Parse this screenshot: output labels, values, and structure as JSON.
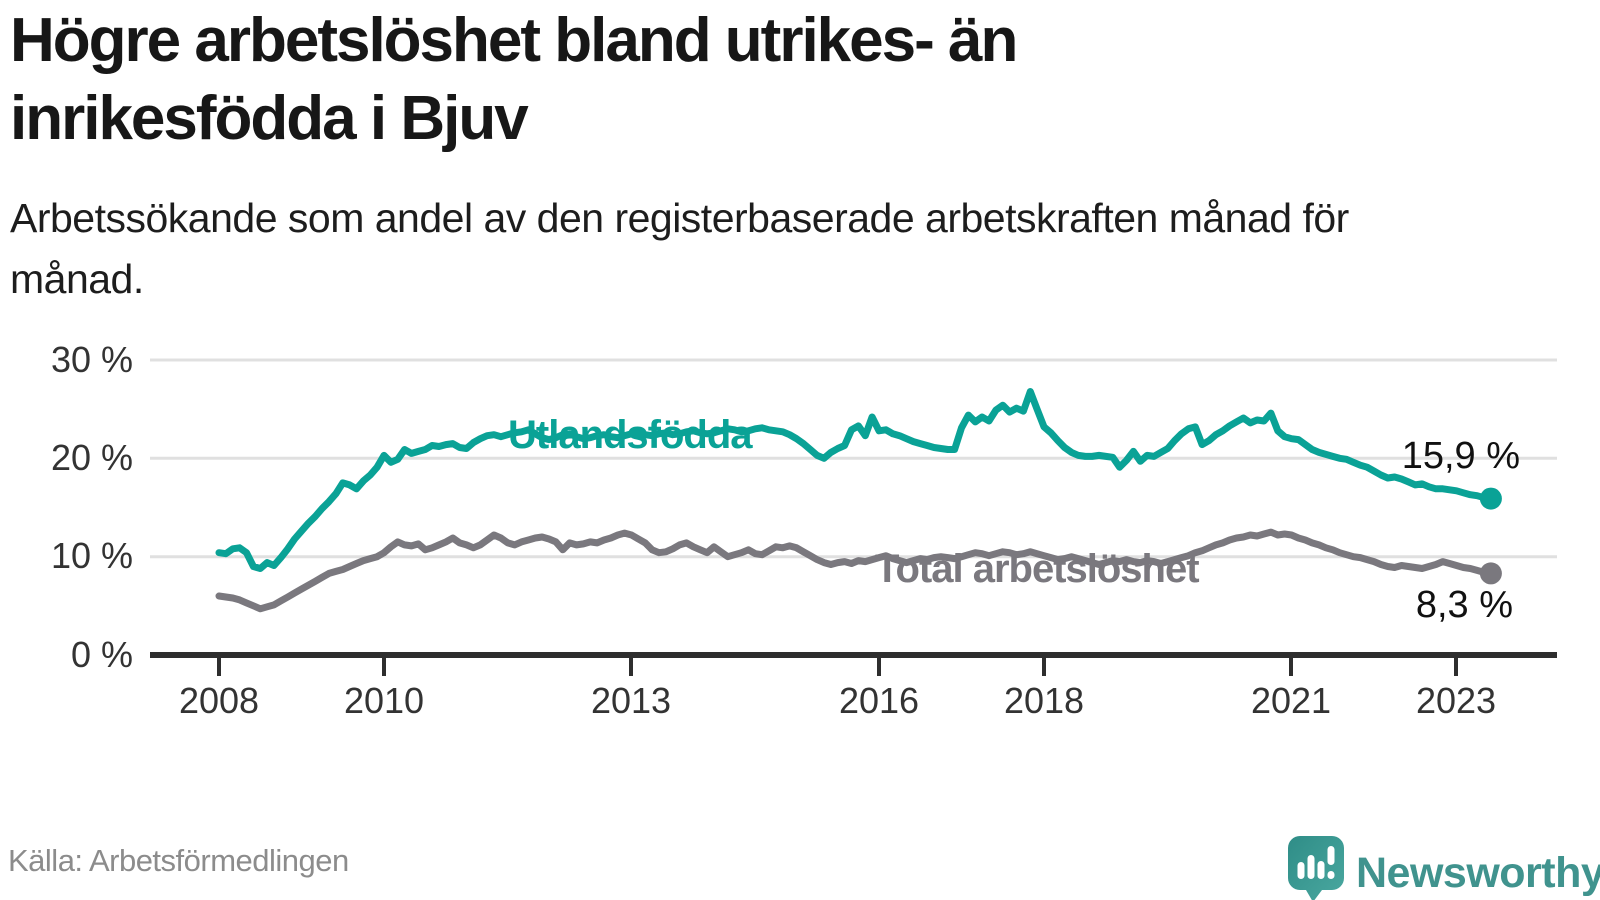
{
  "header": {
    "title": "Högre arbetslöshet bland utrikes- än inrikesfödda i Bjuv",
    "subtitle": "Arbetssökande som andel av den registerbaserade arbetskraften månad för månad."
  },
  "footer": {
    "source": "Källa: Arbetsförmedlingen",
    "brand": "Newsworthy"
  },
  "colors": {
    "teal": "#0aa296",
    "gray": "#7a787e",
    "grid": "#e0e0e0",
    "axis": "#2e2e2e",
    "logo_teal": "#40938e"
  },
  "chart_data": {
    "type": "line",
    "title": "Högre arbetslöshet bland utrikes- än inrikesfödda i Bjuv",
    "xlabel": "",
    "ylabel": "Arbetssökande som andel av den registerbaserade arbetskraften",
    "x_start": "2008-01",
    "x_end": "2023-06",
    "frequency": "monthly",
    "ylim": [
      0,
      30
    ],
    "grid": "horizontal",
    "ytick_labels": [
      "30 %",
      "20 %",
      "10 %",
      "0 %"
    ],
    "yticks": [
      30,
      20,
      10,
      0
    ],
    "xtick_labels": [
      "2008",
      "2010",
      "2013",
      "2016",
      "2018",
      "2021",
      "2023"
    ],
    "series": [
      {
        "name": "Utlandsfödda",
        "color": "#0aa296",
        "end_label": "15,9 %",
        "last_value": 15.9,
        "values": [
          10.4,
          10.3,
          10.8,
          10.9,
          10.4,
          9.0,
          8.8,
          9.4,
          9.1,
          9.9,
          10.8,
          11.8,
          12.6,
          13.4,
          14.1,
          14.9,
          15.6,
          16.4,
          17.5,
          17.3,
          16.9,
          17.7,
          18.3,
          19.1,
          20.3,
          19.6,
          19.9,
          20.9,
          20.5,
          20.7,
          20.9,
          21.3,
          21.2,
          21.4,
          21.5,
          21.1,
          21.0,
          21.6,
          22.0,
          22.3,
          22.4,
          22.2,
          22.4,
          22.6,
          22.7,
          22.9,
          22.5,
          22.1,
          21.9,
          22.1,
          22.4,
          22.5,
          22.2,
          22.0,
          22.1,
          22.3,
          22.4,
          22.2,
          22.1,
          22.3,
          22.5,
          22.6,
          22.4,
          22.3,
          22.5,
          22.6,
          22.4,
          22.5,
          22.7,
          22.8,
          22.6,
          22.5,
          22.6,
          22.8,
          23.0,
          22.9,
          22.7,
          22.8,
          23.0,
          23.1,
          22.9,
          22.8,
          22.7,
          22.4,
          22.0,
          21.5,
          20.9,
          20.3,
          20.0,
          20.6,
          21.0,
          21.3,
          22.9,
          23.3,
          22.3,
          24.2,
          22.8,
          22.9,
          22.5,
          22.3,
          22.0,
          21.7,
          21.5,
          21.3,
          21.1,
          21.0,
          20.9,
          20.9,
          23.1,
          24.4,
          23.7,
          24.2,
          23.8,
          24.9,
          25.4,
          24.7,
          25.1,
          24.8,
          26.8,
          25.0,
          23.2,
          22.6,
          21.8,
          21.1,
          20.6,
          20.3,
          20.2,
          20.2,
          20.3,
          20.2,
          20.1,
          19.1,
          19.8,
          20.7,
          19.7,
          20.3,
          20.2,
          20.6,
          21.0,
          21.8,
          22.5,
          23.0,
          23.2,
          21.4,
          21.8,
          22.4,
          22.8,
          23.3,
          23.7,
          24.1,
          23.6,
          23.9,
          23.8,
          24.6,
          22.8,
          22.2,
          22.0,
          21.9,
          21.4,
          20.9,
          20.6,
          20.4,
          20.2,
          20.0,
          19.9,
          19.6,
          19.3,
          19.1,
          18.7,
          18.3,
          18.0,
          18.1,
          17.9,
          17.6,
          17.3,
          17.4,
          17.1,
          16.9,
          16.9,
          16.8,
          16.7,
          16.5,
          16.3,
          16.2,
          16.0,
          15.9
        ]
      },
      {
        "name": "Total arbetslöshet",
        "color": "#7a787e",
        "end_label": "8,3 %",
        "last_value": 8.3,
        "values": [
          6.0,
          5.9,
          5.8,
          5.6,
          5.3,
          5.0,
          4.7,
          4.9,
          5.1,
          5.5,
          5.9,
          6.3,
          6.7,
          7.1,
          7.5,
          7.9,
          8.3,
          8.5,
          8.7,
          9.0,
          9.3,
          9.6,
          9.8,
          10.0,
          10.4,
          11.0,
          11.5,
          11.2,
          11.1,
          11.3,
          10.7,
          10.9,
          11.2,
          11.5,
          11.9,
          11.4,
          11.2,
          10.9,
          11.2,
          11.7,
          12.2,
          11.9,
          11.4,
          11.2,
          11.5,
          11.7,
          11.9,
          12.0,
          11.8,
          11.5,
          10.7,
          11.4,
          11.2,
          11.3,
          11.5,
          11.4,
          11.7,
          11.9,
          12.2,
          12.4,
          12.2,
          11.8,
          11.4,
          10.7,
          10.4,
          10.5,
          10.8,
          11.2,
          11.4,
          11.0,
          10.7,
          10.4,
          11.0,
          10.5,
          10.0,
          10.2,
          10.4,
          10.7,
          10.3,
          10.2,
          10.6,
          11.0,
          10.9,
          11.1,
          10.9,
          10.5,
          10.1,
          9.7,
          9.4,
          9.2,
          9.4,
          9.5,
          9.3,
          9.6,
          9.5,
          9.7,
          9.9,
          10.1,
          9.8,
          9.6,
          9.4,
          9.6,
          9.8,
          9.7,
          9.9,
          10.0,
          9.9,
          9.8,
          10.0,
          10.2,
          10.4,
          10.3,
          10.1,
          10.3,
          10.5,
          10.4,
          10.2,
          10.3,
          10.5,
          10.3,
          10.1,
          9.9,
          9.7,
          9.8,
          10.0,
          9.8,
          9.6,
          9.4,
          9.2,
          9.4,
          9.6,
          9.5,
          9.7,
          9.5,
          9.4,
          9.6,
          9.5,
          9.3,
          9.5,
          9.7,
          9.9,
          10.1,
          10.4,
          10.6,
          10.9,
          11.2,
          11.4,
          11.7,
          11.9,
          12.0,
          12.2,
          12.1,
          12.3,
          12.5,
          12.2,
          12.3,
          12.2,
          11.9,
          11.7,
          11.4,
          11.2,
          10.9,
          10.7,
          10.4,
          10.2,
          10.0,
          9.9,
          9.7,
          9.5,
          9.2,
          9.0,
          8.9,
          9.1,
          9.0,
          8.9,
          8.8,
          9.0,
          9.2,
          9.5,
          9.3,
          9.1,
          8.9,
          8.8,
          8.6,
          8.4,
          8.3
        ]
      }
    ],
    "legend_position": "inline"
  }
}
